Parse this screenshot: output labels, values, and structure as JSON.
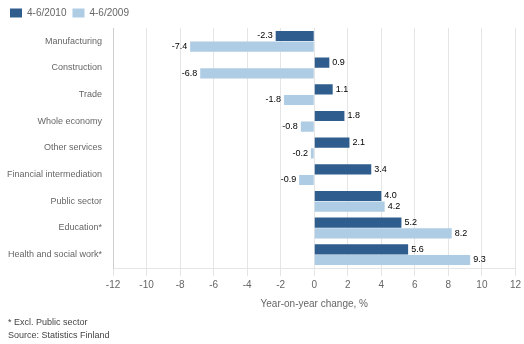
{
  "chart_data": {
    "type": "bar",
    "orientation": "horizontal",
    "categories": [
      "Manufacturing",
      "Construction",
      "Trade",
      "Whole economy",
      "Other services",
      "Financial intermediation",
      "Public sector",
      "Education*",
      "Health and social work*"
    ],
    "series": [
      {
        "name": "4-6/2010",
        "color": "#2E5D8E",
        "values": [
          -2.3,
          0.9,
          1.1,
          1.8,
          2.1,
          3.4,
          4.0,
          5.2,
          5.6
        ],
        "value_labels": [
          "-2.3",
          "0.9",
          "1.1",
          "1.8",
          "2.1",
          "3.4",
          "4.0",
          "5.2",
          "5.6"
        ]
      },
      {
        "name": "4-6/2009",
        "color": "#AECCE4",
        "values": [
          -7.4,
          -6.8,
          -1.8,
          -0.8,
          -0.2,
          -0.9,
          4.2,
          8.2,
          9.3
        ],
        "value_labels": [
          "-7.4",
          "-6.8",
          "-1.8",
          "-0.8",
          "-0.2",
          "-0.9",
          "4.2",
          "8.2",
          "9.3"
        ]
      }
    ],
    "xlabel": "Year-on-year change, %",
    "xlim": [
      -12,
      12
    ],
    "xticks": [
      -12,
      -10,
      -8,
      -6,
      -4,
      -2,
      0,
      2,
      4,
      6,
      8,
      10,
      12
    ],
    "grid": true,
    "legend": "upper left",
    "data_labels": true,
    "annotations": [
      "* Excl. Public sector",
      "Source: Statistics Finland"
    ]
  }
}
